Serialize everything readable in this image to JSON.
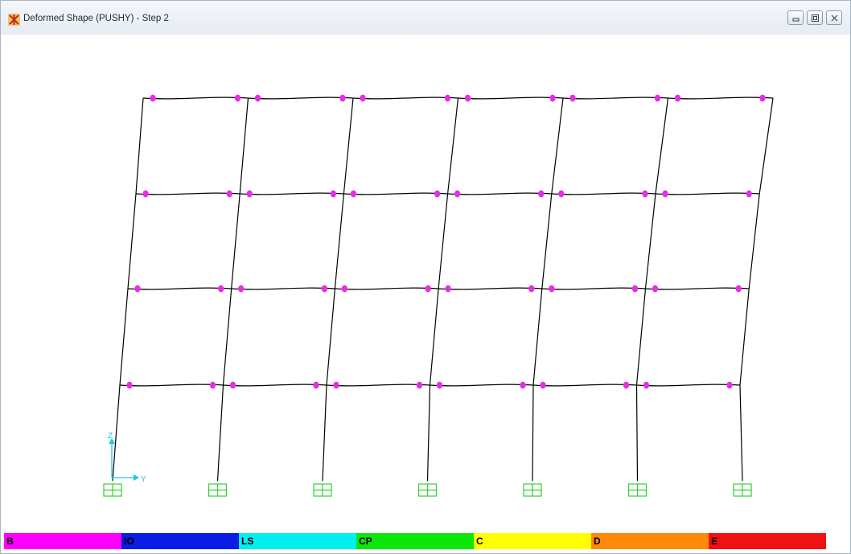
{
  "window": {
    "title": "Deformed Shape (PUSHY) - Step 2",
    "icon": "sap2000-app-icon",
    "controls": [
      "minimize-icon",
      "restore-icon",
      "close-icon"
    ]
  },
  "frame": {
    "bays": 6,
    "stories": 4,
    "hinge_color": "#e62ee6",
    "member_color": "#000000",
    "support_color": "#2fd12f"
  },
  "axes": {
    "vertical_label": "Z",
    "horizontal_label": "Y",
    "color": "#1fc6e6"
  },
  "legend": [
    {
      "label": "B",
      "color": "#ff00ff"
    },
    {
      "label": "IO",
      "color": "#0a1ce6"
    },
    {
      "label": "LS",
      "color": "#00f0f0"
    },
    {
      "label": "CP",
      "color": "#0be60b"
    },
    {
      "label": "C",
      "color": "#ffff00"
    },
    {
      "label": "D",
      "color": "#ff8a0a"
    },
    {
      "label": "E",
      "color": "#f01212"
    }
  ]
}
